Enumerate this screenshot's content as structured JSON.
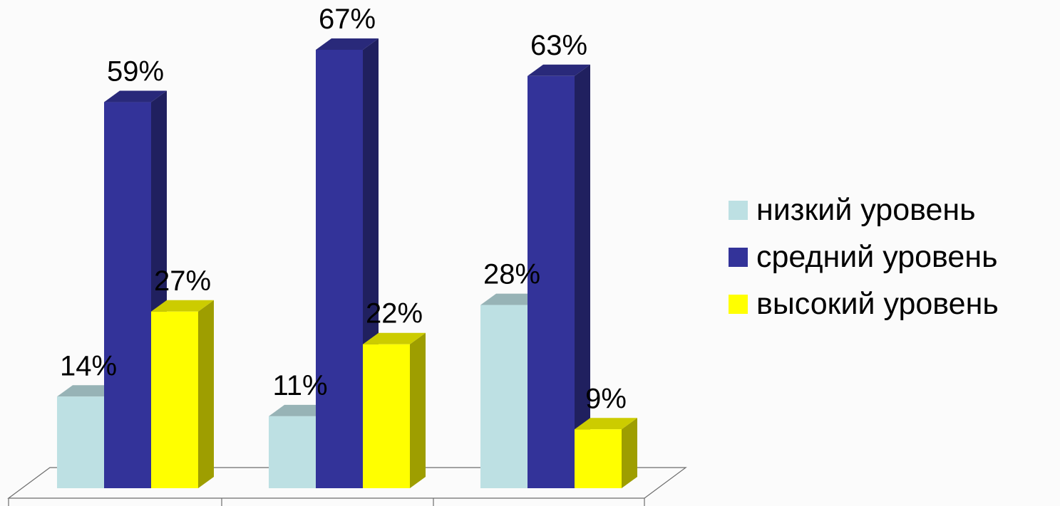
{
  "chart_data": {
    "type": "bar",
    "style": "3d-clustered-column",
    "categories": [
      "",
      "",
      ""
    ],
    "series": [
      {
        "name": "низкий уровень",
        "values": [
          14,
          11,
          28
        ],
        "labels": [
          "14%",
          "11%",
          "28%"
        ],
        "color": "#bde0e3"
      },
      {
        "name": "средний уровень",
        "values": [
          59,
          67,
          63
        ],
        "labels": [
          "59%",
          "67%",
          "63%"
        ],
        "color": "#333399"
      },
      {
        "name": "высокий уровень",
        "values": [
          27,
          22,
          9
        ],
        "labels": [
          "27%",
          "22%",
          "9%"
        ],
        "color": "#ffff00"
      }
    ],
    "title": "",
    "xlabel": "",
    "ylabel": "",
    "ylim": [
      0,
      70
    ],
    "grid": false,
    "legend_position": "right"
  },
  "colors": {
    "background": "#fbfbfb",
    "floor_stroke": "#6e6e6e"
  }
}
